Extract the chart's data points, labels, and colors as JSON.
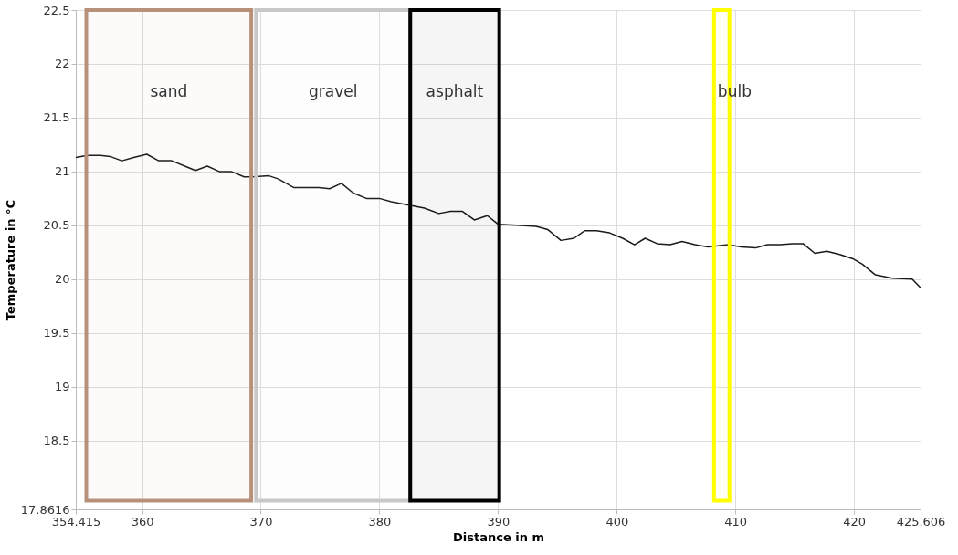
{
  "chart_data": {
    "type": "line",
    "xlabel": "Distance in m",
    "ylabel": "Temperature in °C",
    "x": [
      354.415,
      355.4,
      356.5,
      357.3,
      358.3,
      359.3,
      360.4,
      361.4,
      362.5,
      363.6,
      364.5,
      365.5,
      366.5,
      367.5,
      368.6,
      369.3,
      370.7,
      371.5,
      372.8,
      374.9,
      375.8,
      376.8,
      377.8,
      378.9,
      380.0,
      381.0,
      382.4,
      383.8,
      385.0,
      386.0,
      387.0,
      388.0,
      389.1,
      390.0,
      391.6,
      393.2,
      394.2,
      395.3,
      396.4,
      397.3,
      398.3,
      399.4,
      400.5,
      401.5,
      402.4,
      403.4,
      404.5,
      405.5,
      406.6,
      407.7,
      409.4,
      410.5,
      411.7,
      412.7,
      413.8,
      414.8,
      415.7,
      416.7,
      417.7,
      418.8,
      419.9,
      420.7,
      421.8,
      423.2,
      424.9,
      425.606
    ],
    "series": [
      {
        "color": "#1a1a1a",
        "values": [
          21.13,
          21.15,
          21.15,
          21.14,
          21.1,
          21.13,
          21.16,
          21.1,
          21.1,
          21.05,
          21.01,
          21.05,
          21.0,
          21.0,
          20.95,
          20.95,
          20.96,
          20.93,
          20.85,
          20.85,
          20.84,
          20.89,
          20.8,
          20.75,
          20.75,
          20.72,
          20.69,
          20.66,
          20.61,
          20.63,
          20.63,
          20.55,
          20.59,
          20.51,
          20.5,
          20.49,
          20.46,
          20.36,
          20.38,
          20.45,
          20.45,
          20.43,
          20.38,
          20.32,
          20.38,
          20.33,
          20.32,
          20.35,
          20.32,
          20.3,
          20.32,
          20.3,
          20.29,
          20.32,
          20.32,
          20.33,
          20.33,
          20.24,
          20.26,
          20.23,
          20.19,
          20.14,
          20.04,
          20.01,
          20.0,
          19.92
        ]
      }
    ],
    "xlim": [
      354.415,
      425.606
    ],
    "xticks": [
      354.415,
      360,
      370,
      380,
      390,
      400,
      410,
      420,
      425.606
    ],
    "ylim": [
      17.8616,
      22.5
    ],
    "yticks": [
      17.8616,
      18.5,
      19,
      19.5,
      20,
      20.5,
      21,
      21.5,
      22,
      22.5
    ],
    "grid": true,
    "marker": "none",
    "line_style": "solid",
    "bands": [
      {
        "axis": "x",
        "from": 355.3,
        "to": 369.2,
        "label": "sand",
        "color": "#b8917a"
      },
      {
        "axis": "x",
        "from": 369.6,
        "to": 382.6,
        "label": "gravel",
        "color": "#c8c8c8"
      },
      {
        "axis": "x",
        "from": 382.6,
        "to": 390.1,
        "label": "asphalt",
        "color": "#000000"
      },
      {
        "axis": "x",
        "from": 408.2,
        "to": 409.5,
        "label": "bulb",
        "color": "#ffff00"
      }
    ]
  }
}
